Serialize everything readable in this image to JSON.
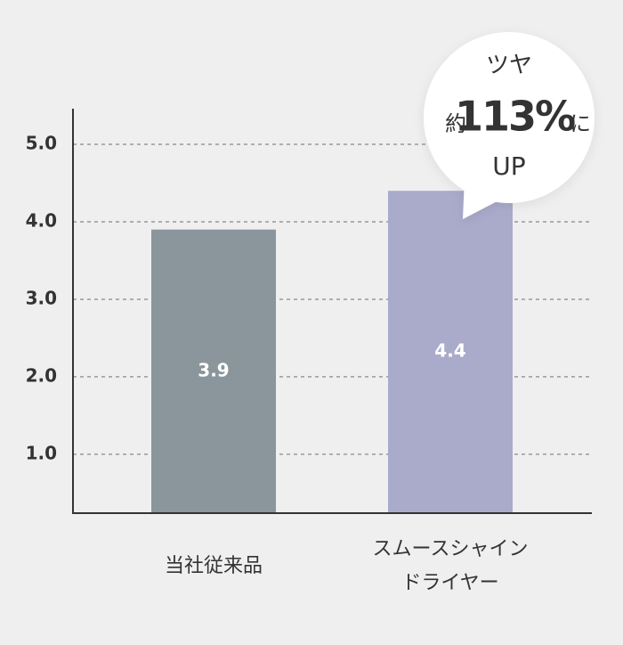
{
  "chart_data": {
    "type": "bar",
    "categories": [
      "当社従来品",
      "スムースシャイン\nドライヤー"
    ],
    "series": [
      {
        "values": [
          3.9,
          4.4
        ],
        "colors": [
          "#8a969c",
          "#aaabcb"
        ]
      }
    ],
    "ylim": [
      0.24,
      5.46
    ],
    "yticks": [
      {
        "value": 1,
        "label": "1.0"
      },
      {
        "value": 2,
        "label": "2.0"
      },
      {
        "value": 3,
        "label": "3.0"
      },
      {
        "value": 4,
        "label": "4.0"
      },
      {
        "value": 5,
        "label": "5.0"
      }
    ],
    "grid": true,
    "annotation": {
      "top": "ツヤ",
      "prefix": "約",
      "figure": "113%",
      "suffix": "に",
      "bottom": "UP"
    }
  }
}
